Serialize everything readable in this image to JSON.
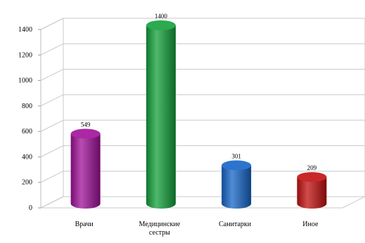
{
  "chart_data": {
    "type": "bar",
    "categories": [
      "Врачи",
      "Медицинские сестры",
      "Санитарки",
      "Иное"
    ],
    "values": [
      549,
      1400,
      301,
      209
    ],
    "value_labels": [
      "549",
      "1400",
      "301",
      "209"
    ],
    "ylim": [
      0,
      1400
    ],
    "yticks": [
      0,
      200,
      400,
      600,
      800,
      1000,
      1200,
      1400
    ],
    "grid": true,
    "bar_shape": "cylinder",
    "colors": [
      "#a0109a",
      "#13a03a",
      "#1565c8",
      "#c21010"
    ],
    "title": "",
    "xlabel": "",
    "ylabel": ""
  }
}
